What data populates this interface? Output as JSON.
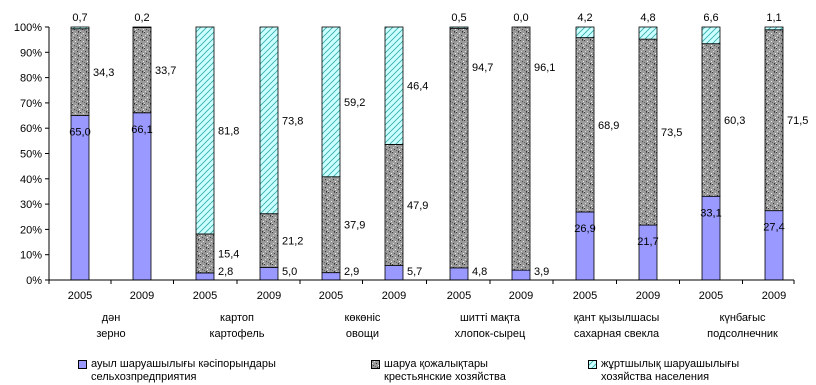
{
  "chart_data": {
    "type": "bar",
    "stacked": "percent",
    "ylim": [
      0,
      100
    ],
    "y_ticks": [
      "0%",
      "10%",
      "20%",
      "30%",
      "40%",
      "50%",
      "60%",
      "70%",
      "80%",
      "90%",
      "100%"
    ],
    "categories": [
      "2005",
      "2009",
      "2005",
      "2009",
      "2005",
      "2009",
      "2005",
      "2009",
      "2005",
      "2009",
      "2005",
      "2009"
    ],
    "groups": [
      {
        "label_kz": "дән",
        "label_ru": "зерно"
      },
      {
        "label_kz": "картоп",
        "label_ru": "картофель"
      },
      {
        "label_kz": "көкөніс",
        "label_ru": "овощи"
      },
      {
        "label_kz": "шитті мақта",
        "label_ru": "хлопок-сырец"
      },
      {
        "label_kz": "қант қызылшасы",
        "label_ru": "сахарная свекла"
      },
      {
        "label_kz": "күнбағыс",
        "label_ru": "подсолнечник"
      }
    ],
    "series": [
      {
        "name_kz": "ауыл шаруашылығы кәсіпорындары",
        "name_ru": "сельхозпредприятия",
        "color": "#9999ff",
        "pattern": "solid",
        "values": [
          65.0,
          66.1,
          2.8,
          5.0,
          2.9,
          5.7,
          4.8,
          3.9,
          26.9,
          21.7,
          33.1,
          27.4
        ],
        "labels": [
          "65,0",
          "66,1",
          "2,8",
          "5,0",
          "2,9",
          "5,7",
          "4,8",
          "3,9",
          "26,9",
          "21,7",
          "33,1",
          "27,4"
        ]
      },
      {
        "name_kz": "шаруа қожалықтары",
        "name_ru": "крестьянские хозяйства",
        "color": "#a0a0a0",
        "pattern": "granite",
        "values": [
          34.3,
          33.7,
          15.4,
          21.2,
          37.9,
          47.9,
          94.7,
          96.1,
          68.9,
          73.5,
          60.3,
          71.5
        ],
        "labels": [
          "34,3",
          "33,7",
          "15,4",
          "21,2",
          "37,9",
          "47,9",
          "94,7",
          "96,1",
          "68,9",
          "73,5",
          "60,3",
          "71,5"
        ]
      },
      {
        "name_kz": "жұртшылық шаруашылығы",
        "name_ru": "хозяйства населения",
        "color": "#ccffff",
        "pattern": "hatch",
        "values": [
          0.7,
          0.2,
          81.8,
          73.8,
          59.2,
          46.4,
          0.5,
          0.0,
          4.2,
          4.8,
          6.6,
          1.1
        ],
        "labels": [
          "0,7",
          "0,2",
          "81,8",
          "73,8",
          "59,2",
          "46,4",
          "0,5",
          "0,0",
          "4,2",
          "4,8",
          "6,6",
          "1,1"
        ]
      }
    ],
    "grid": false,
    "legend_position": "bottom"
  }
}
